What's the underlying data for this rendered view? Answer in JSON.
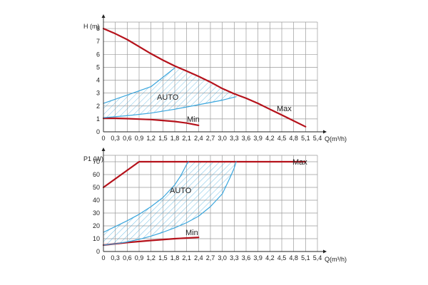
{
  "chart_data": [
    {
      "type": "line",
      "ylabel": "H (m)",
      "xlabel": "Q(m³/h)",
      "xlim": [
        0,
        5.4
      ],
      "ylim": [
        0,
        8.5
      ],
      "x_ticks": [
        "0",
        "0,3",
        "0,6",
        "0,9",
        "1,2",
        "1,5",
        "1,8",
        "2,1",
        "2,4",
        "2,7",
        "3,0",
        "3,3",
        "3,6",
        "3,9",
        "4,2",
        "4,5",
        "4,8",
        "5,1",
        "5,4"
      ],
      "y_ticks": [
        "0",
        "1",
        "2",
        "3",
        "4",
        "5",
        "6",
        "7",
        "8"
      ],
      "colors": {
        "red_curve": "#b5121b",
        "blue_curve": "#3aa6dd",
        "grid": "#9a9a9a"
      },
      "series": [
        {
          "name": "Max",
          "color": "#b5121b",
          "points": [
            [
              0,
              8
            ],
            [
              0.3,
              7.6
            ],
            [
              0.6,
              7.15
            ],
            [
              0.9,
              6.6
            ],
            [
              1.2,
              6.05
            ],
            [
              1.5,
              5.55
            ],
            [
              1.8,
              5.1
            ],
            [
              2.1,
              4.7
            ],
            [
              2.4,
              4.3
            ],
            [
              2.7,
              3.85
            ],
            [
              3.0,
              3.35
            ],
            [
              3.3,
              2.95
            ],
            [
              3.6,
              2.6
            ],
            [
              3.9,
              2.2
            ],
            [
              4.2,
              1.75
            ],
            [
              4.5,
              1.3
            ],
            [
              4.8,
              0.85
            ],
            [
              5.1,
              0.4
            ]
          ]
        },
        {
          "name": "Min",
          "color": "#b5121b",
          "points": [
            [
              0,
              1.05
            ],
            [
              0.3,
              1.05
            ],
            [
              0.6,
              1.02
            ],
            [
              0.9,
              0.98
            ],
            [
              1.2,
              0.95
            ],
            [
              1.5,
              0.88
            ],
            [
              1.8,
              0.8
            ],
            [
              2.1,
              0.68
            ],
            [
              2.4,
              0.5
            ]
          ]
        },
        {
          "name": "AUTO upper",
          "color": "#3aa6dd",
          "points": [
            [
              0,
              2.2
            ],
            [
              0.6,
              2.85
            ],
            [
              1.2,
              3.5
            ],
            [
              1.8,
              4.95
            ]
          ]
        },
        {
          "name": "AUTO lower",
          "color": "#3aa6dd",
          "points": [
            [
              0,
              1.1
            ],
            [
              0.6,
              1.25
            ],
            [
              1.2,
              1.45
            ],
            [
              1.8,
              1.75
            ],
            [
              2.4,
              2.1
            ],
            [
              3.0,
              2.45
            ],
            [
              3.35,
              2.72
            ]
          ]
        }
      ],
      "annotations": [
        "AUTO",
        "Min",
        "Max"
      ]
    },
    {
      "type": "line",
      "ylabel": "P1 (W)",
      "xlabel": "Q(m³/h)",
      "xlim": [
        0,
        5.4
      ],
      "ylim": [
        0,
        75
      ],
      "x_ticks": [
        "0",
        "0,3",
        "0,6",
        "0,9",
        "1,2",
        "1,5",
        "1,8",
        "2,1",
        "2,4",
        "2,7",
        "3,0",
        "3,3",
        "3,6",
        "3,9",
        "4,2",
        "4,5",
        "4,8",
        "5,1",
        "5,4"
      ],
      "y_ticks": [
        "0",
        "10",
        "20",
        "30",
        "40",
        "50",
        "60",
        "70"
      ],
      "colors": {
        "red_curve": "#b5121b",
        "blue_curve": "#3aa6dd",
        "grid": "#9a9a9a"
      },
      "series": [
        {
          "name": "Max",
          "color": "#b5121b",
          "points": [
            [
              0,
              50
            ],
            [
              0.9,
              70
            ],
            [
              5.1,
              70
            ]
          ]
        },
        {
          "name": "Min",
          "color": "#b5121b",
          "points": [
            [
              0,
              5
            ],
            [
              0.6,
              7
            ],
            [
              1.2,
              8.6
            ],
            [
              1.8,
              10
            ],
            [
              2.4,
              11
            ]
          ]
        },
        {
          "name": "AUTO upper",
          "color": "#3aa6dd",
          "points": [
            [
              0,
              15
            ],
            [
              0.3,
              19.5
            ],
            [
              0.6,
              24
            ],
            [
              0.9,
              29
            ],
            [
              1.2,
              35
            ],
            [
              1.5,
              42
            ],
            [
              1.8,
              52
            ],
            [
              1.95,
              59
            ],
            [
              2.1,
              68
            ],
            [
              2.15,
              70
            ]
          ]
        },
        {
          "name": "AUTO lower",
          "color": "#3aa6dd",
          "points": [
            [
              0,
              5
            ],
            [
              0.3,
              6
            ],
            [
              0.6,
              7.5
            ],
            [
              0.9,
              9.5
            ],
            [
              1.2,
              12
            ],
            [
              1.5,
              15
            ],
            [
              1.8,
              18.5
            ],
            [
              2.1,
              22.5
            ],
            [
              2.4,
              27.5
            ],
            [
              2.7,
              35
            ],
            [
              3.0,
              45
            ],
            [
              3.2,
              58
            ],
            [
              3.3,
              65
            ],
            [
              3.35,
              70
            ]
          ]
        }
      ],
      "annotations": [
        "AUTO",
        "Min",
        "Max"
      ]
    }
  ],
  "labels": {
    "top_auto": "AUTO",
    "top_min": "Min",
    "top_max": "Max",
    "bot_auto": "AUTO",
    "bot_min": "Min",
    "bot_max": "Max"
  }
}
